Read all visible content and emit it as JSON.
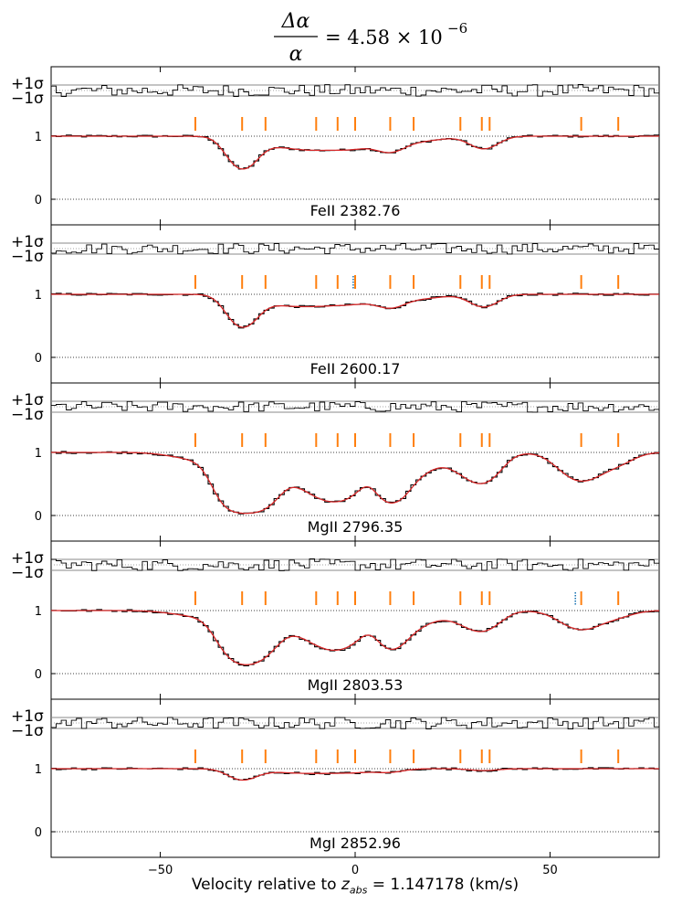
{
  "title": {
    "numerator": "Δα",
    "denominator": "α",
    "equals_value": "= 4.58 × 10",
    "exponent": "−6"
  },
  "xlabel": {
    "prefix": "Velocity relative to ",
    "var": "z",
    "sub": "abs",
    "suffix": " = 1.147178 (km/s)"
  },
  "chart_data": {
    "type": "line",
    "xlim": [
      -78,
      78
    ],
    "xticks": [
      -50,
      0,
      50
    ],
    "xtick_labels": [
      "−50",
      "0",
      "50"
    ],
    "residual_labels": [
      "+1σ",
      "−1σ"
    ],
    "flux_ticks": [
      1,
      0
    ],
    "flux_tick_labels": [
      "1",
      "0"
    ],
    "component_velocities": [
      -41,
      -29,
      -23,
      -10,
      -4.5,
      0,
      9,
      15,
      27,
      32.5,
      34.5,
      58,
      67.5
    ],
    "grid": "dotted reference lines at flux 0 and 1",
    "colors": {
      "data": "#000000",
      "model": "#d62728",
      "component_tick": "#ff7f0e",
      "extra_tick": "#1f77b4"
    },
    "panels": [
      {
        "label": "FeII 2382.76",
        "continuum": 1.0,
        "extra_ticks": [],
        "absorption_components": [
          {
            "v": -29,
            "depth": 0.5,
            "width": 3.5
          },
          {
            "v": -20,
            "depth": 0.12,
            "width": 6
          },
          {
            "v": -10,
            "depth": 0.18,
            "width": 6
          },
          {
            "v": 0,
            "depth": 0.16,
            "width": 5
          },
          {
            "v": 9,
            "depth": 0.2,
            "width": 3.5
          },
          {
            "v": 16,
            "depth": 0.08,
            "width": 6
          },
          {
            "v": 33,
            "depth": 0.2,
            "width": 3.5
          }
        ],
        "residual_noise": 1.0
      },
      {
        "label": "FeII 2600.17",
        "continuum": 1.0,
        "extra_ticks": [
          -0.5
        ],
        "absorption_components": [
          {
            "v": -29,
            "depth": 0.5,
            "width": 3.5
          },
          {
            "v": -20,
            "depth": 0.13,
            "width": 6
          },
          {
            "v": -10,
            "depth": 0.15,
            "width": 6
          },
          {
            "v": 0,
            "depth": 0.12,
            "width": 5
          },
          {
            "v": 9,
            "depth": 0.17,
            "width": 3.5
          },
          {
            "v": 16,
            "depth": 0.07,
            "width": 6
          },
          {
            "v": 33,
            "depth": 0.2,
            "width": 3.5
          }
        ],
        "residual_noise": 0.9
      },
      {
        "label": "MgII 2796.35",
        "continuum": 1.0,
        "extra_ticks": [],
        "absorption_components": [
          {
            "v": -41,
            "depth": 0.1,
            "width": 6
          },
          {
            "v": -29,
            "depth": 0.95,
            "width": 4.5
          },
          {
            "v": -23,
            "depth": 0.6,
            "width": 4
          },
          {
            "v": -10,
            "depth": 0.6,
            "width": 6
          },
          {
            "v": -4.5,
            "depth": 0.55,
            "width": 4
          },
          {
            "v": 0,
            "depth": 0.3,
            "width": 3
          },
          {
            "v": 9,
            "depth": 0.75,
            "width": 3.5
          },
          {
            "v": 15,
            "depth": 0.35,
            "width": 5
          },
          {
            "v": 27,
            "depth": 0.2,
            "width": 4
          },
          {
            "v": 33,
            "depth": 0.45,
            "width": 4
          },
          {
            "v": 58,
            "depth": 0.45,
            "width": 5
          },
          {
            "v": 67.5,
            "depth": 0.15,
            "width": 4
          }
        ],
        "residual_noise": 0.9
      },
      {
        "label": "MgII 2803.53",
        "continuum": 1.0,
        "extra_ticks": [
          56.5
        ],
        "absorption_components": [
          {
            "v": -41,
            "depth": 0.08,
            "width": 6
          },
          {
            "v": -29,
            "depth": 0.82,
            "width": 4.5
          },
          {
            "v": -23,
            "depth": 0.45,
            "width": 4
          },
          {
            "v": -10,
            "depth": 0.45,
            "width": 6
          },
          {
            "v": -4.5,
            "depth": 0.4,
            "width": 4
          },
          {
            "v": 0,
            "depth": 0.22,
            "width": 3
          },
          {
            "v": 9,
            "depth": 0.55,
            "width": 3.5
          },
          {
            "v": 15,
            "depth": 0.25,
            "width": 5
          },
          {
            "v": 27,
            "depth": 0.12,
            "width": 4
          },
          {
            "v": 33,
            "depth": 0.3,
            "width": 4
          },
          {
            "v": 58,
            "depth": 0.3,
            "width": 5
          },
          {
            "v": 67.5,
            "depth": 0.08,
            "width": 4
          }
        ],
        "residual_noise": 1.0
      },
      {
        "label": "MgI 2852.96",
        "continuum": 1.0,
        "extra_ticks": [],
        "absorption_components": [
          {
            "v": -29,
            "depth": 0.17,
            "width": 3.5
          },
          {
            "v": -20,
            "depth": 0.04,
            "width": 6
          },
          {
            "v": -10,
            "depth": 0.06,
            "width": 6
          },
          {
            "v": 0,
            "depth": 0.05,
            "width": 5
          },
          {
            "v": 9,
            "depth": 0.05,
            "width": 3.5
          },
          {
            "v": 33,
            "depth": 0.03,
            "width": 3.5
          }
        ],
        "residual_noise": 1.0
      }
    ]
  }
}
